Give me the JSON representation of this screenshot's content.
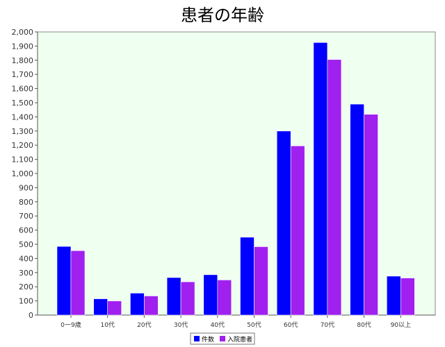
{
  "chart_data": {
    "type": "bar",
    "title": "患者の年齢",
    "categories": [
      "0ー9歳",
      "10代",
      "20代",
      "30代",
      "40代",
      "50代",
      "60代",
      "70代",
      "80代",
      "90以上"
    ],
    "series": [
      {
        "name": "件数",
        "color": "#0000ff",
        "values": [
          485,
          115,
          155,
          265,
          285,
          550,
          1300,
          1925,
          1490,
          275
        ]
      },
      {
        "name": "入院患者",
        "color": "#a020f0",
        "values": [
          455,
          100,
          135,
          235,
          248,
          483,
          1195,
          1805,
          1418,
          262
        ]
      }
    ],
    "ylim": [
      0,
      2000
    ],
    "ytick_step": 100,
    "grid": false,
    "legend": "bottom-center",
    "plot_background": "#effff0"
  }
}
